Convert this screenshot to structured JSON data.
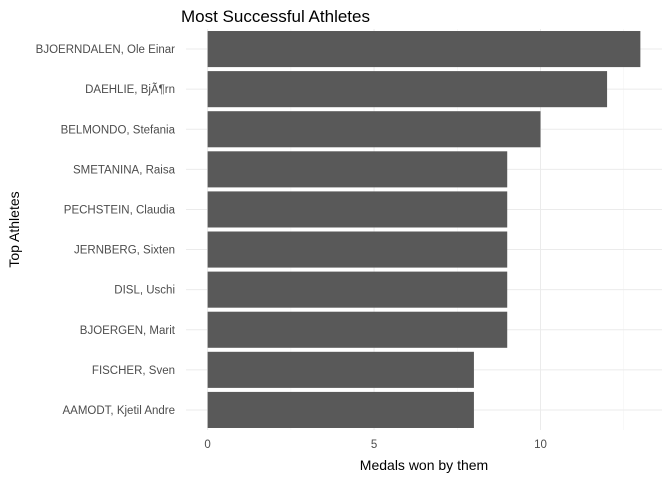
{
  "chart_data": {
    "type": "bar",
    "orientation": "horizontal",
    "title": "Most Successful Athletes",
    "xlabel": "Medals won by them",
    "ylabel": "Top Athletes",
    "categories": [
      "BJOERNDALEN, Ole Einar",
      "DAEHLIE, BjÃ¶rn",
      "BELMONDO, Stefania",
      "SMETANINA, Raisa",
      "PECHSTEIN, Claudia",
      "JERNBERG, Sixten",
      "DISL, Uschi",
      "BJOERGEN, Marit",
      "FISCHER, Sven",
      "AAMODT, Kjetil Andre"
    ],
    "values": [
      13,
      12,
      10,
      9,
      9,
      9,
      9,
      9,
      8,
      8
    ],
    "xlim": [
      -0.65,
      13.65
    ],
    "xticks": [
      0,
      5,
      10
    ],
    "xtick_labels": [
      "0",
      "5",
      "10"
    ],
    "bar_color": "#595959",
    "grid": true
  }
}
